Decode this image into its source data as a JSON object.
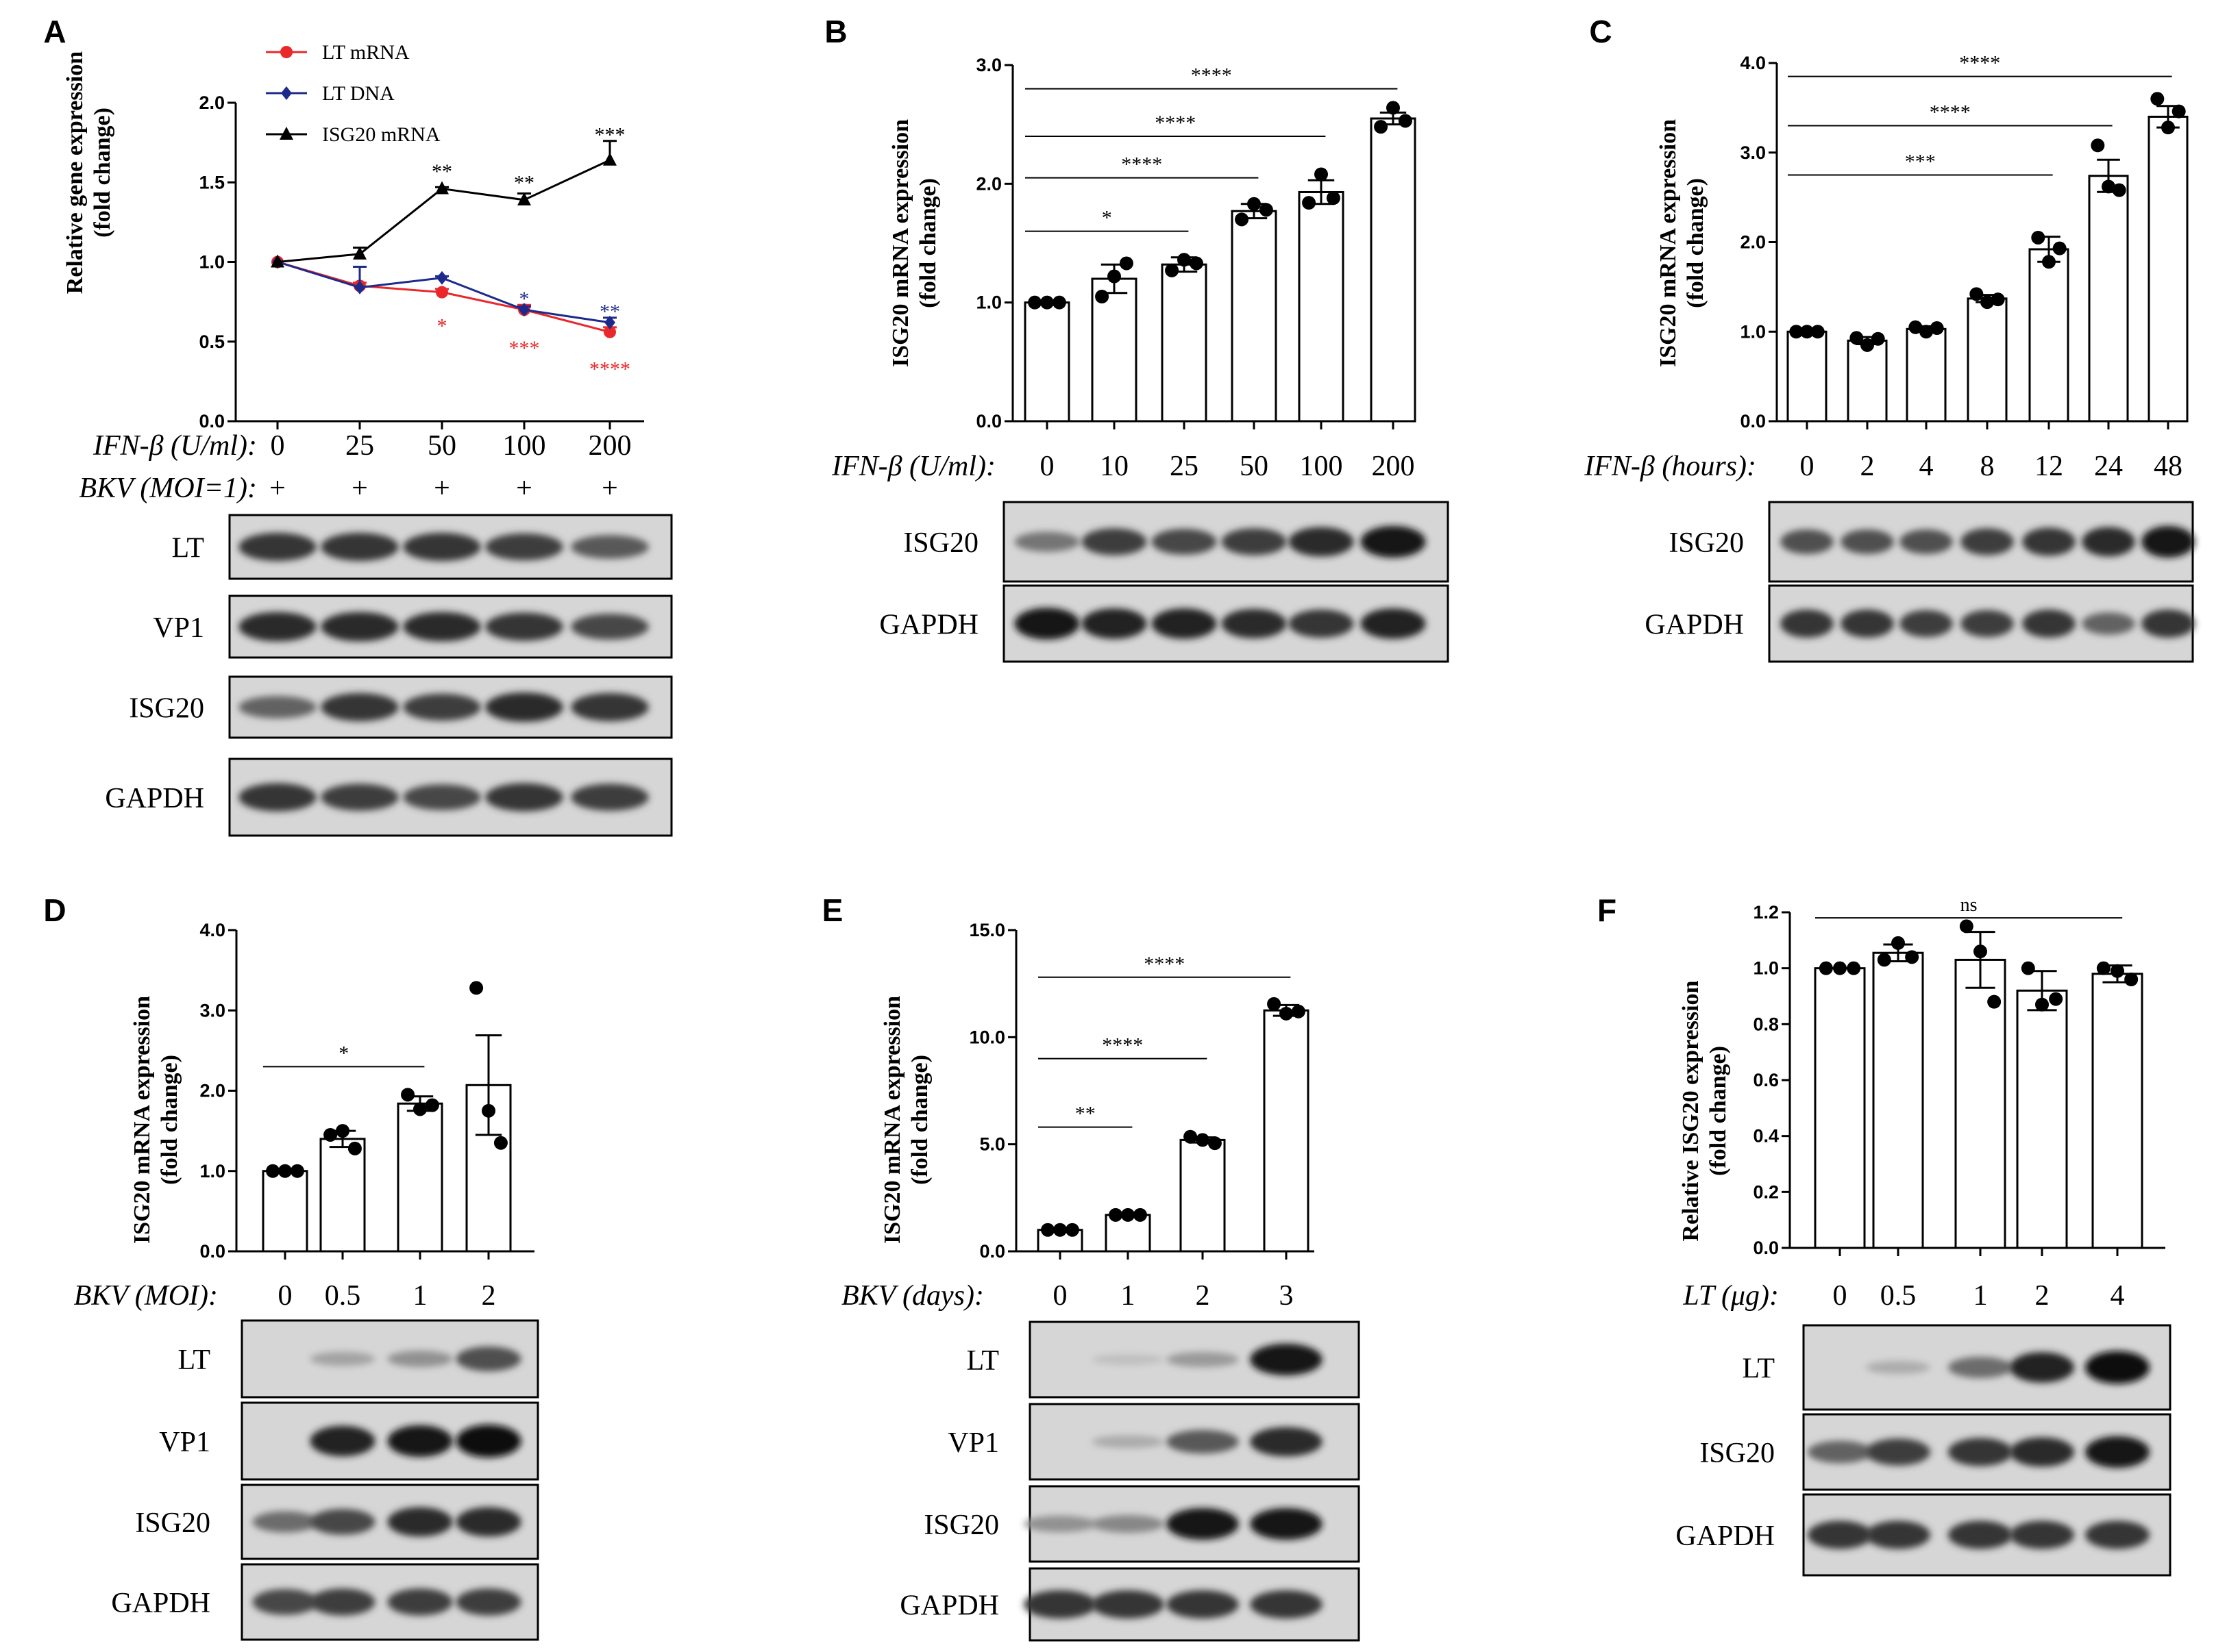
{
  "colors": {
    "lt_mrna": "#e8282b",
    "lt_dna": "#1c2a8c",
    "isg20": "#000000",
    "blot_dark": "#151515"
  },
  "chart_data": [
    {
      "panel": "A",
      "type": "line",
      "ylabel_line1": "Relative gene expression",
      "ylabel_line2": "(fold change)",
      "ylim": [
        0,
        2.0
      ],
      "yticks": [
        "0.0",
        "0.5",
        "1.0",
        "1.5",
        "2.0"
      ],
      "x": [
        0,
        25,
        50,
        100,
        200
      ],
      "series": [
        {
          "name": "LT mRNA",
          "color": "#e8282b",
          "marker": "circle",
          "values": [
            1.0,
            0.85,
            0.81,
            0.7,
            0.56
          ],
          "err": [
            0,
            0.02,
            0.02,
            0.03,
            0.03
          ]
        },
        {
          "name": "LT DNA",
          "color": "#1c2a8c",
          "marker": "diamond",
          "values": [
            1.0,
            0.84,
            0.9,
            0.7,
            0.62
          ],
          "err": [
            0,
            0.13,
            0.01,
            0.02,
            0.03
          ]
        },
        {
          "name": "ISG20 mRNA",
          "color": "#000000",
          "marker": "triangle",
          "values": [
            1.0,
            1.05,
            1.46,
            1.39,
            1.64
          ],
          "err": [
            0,
            0.04,
            0.01,
            0.04,
            0.12
          ]
        }
      ],
      "significance": [
        {
          "text": "**",
          "color": "#000000",
          "x_index": 2,
          "y": 1.57
        },
        {
          "text": "**",
          "color": "#000000",
          "x_index": 3,
          "y": 1.5
        },
        {
          "text": "***",
          "color": "#000000",
          "x_index": 4,
          "y": 1.8
        },
        {
          "text": "*",
          "color": "#1c2a8c",
          "x_index": 3,
          "y": 0.77
        },
        {
          "text": "**",
          "color": "#1c2a8c",
          "x_index": 4,
          "y": 0.69
        },
        {
          "text": "*",
          "color": "#e8282b",
          "x_index": 2,
          "y": 0.6
        },
        {
          "text": "***",
          "color": "#e8282b",
          "x_index": 3,
          "y": 0.46
        },
        {
          "text": "****",
          "color": "#e8282b",
          "x_index": 4,
          "y": 0.33
        }
      ],
      "conditions": [
        {
          "label": "IFN-β (U/ml):",
          "values": [
            "0",
            "25",
            "50",
            "100",
            "200"
          ]
        },
        {
          "label": "BKV (MOI=1):",
          "values": [
            "+",
            "+",
            "+",
            "+",
            "+"
          ]
        }
      ],
      "blots": [
        {
          "label": "LT",
          "bands": [
            0.8,
            0.8,
            0.8,
            0.75,
            0.6
          ]
        },
        {
          "label": "VP1",
          "bands": [
            0.85,
            0.85,
            0.85,
            0.8,
            0.7
          ]
        },
        {
          "label": "ISG20",
          "bands": [
            0.55,
            0.8,
            0.75,
            0.85,
            0.8
          ]
        },
        {
          "label": "GAPDH",
          "bands": [
            0.8,
            0.75,
            0.7,
            0.8,
            0.75
          ]
        }
      ]
    },
    {
      "panel": "B",
      "type": "bar",
      "ylabel_line1": "ISG20 mRNA expression",
      "ylabel_line2": "(fold change)",
      "ylim": [
        0,
        3.0
      ],
      "yticks": [
        "0.0",
        "1.0",
        "2.0",
        "3.0"
      ],
      "categories": [
        "0",
        "10",
        "25",
        "50",
        "100",
        "200"
      ],
      "values": [
        1.0,
        1.2,
        1.32,
        1.77,
        1.93,
        2.55
      ],
      "err": [
        0.0,
        0.12,
        0.06,
        0.06,
        0.1,
        0.05
      ],
      "points": [
        [
          1.0,
          1.0,
          1.0
        ],
        [
          1.05,
          1.22,
          1.33
        ],
        [
          1.27,
          1.36,
          1.33
        ],
        [
          1.7,
          1.83,
          1.78
        ],
        [
          1.84,
          2.08,
          1.88
        ],
        [
          2.48,
          2.64,
          2.53
        ]
      ],
      "brackets": [
        {
          "from": 0,
          "to": 2,
          "y": 1.6,
          "text": "*"
        },
        {
          "from": 0,
          "to": 3,
          "y": 2.05,
          "text": "****"
        },
        {
          "from": 0,
          "to": 4,
          "y": 2.4,
          "text": "****"
        },
        {
          "from": 0,
          "to": 5,
          "y": 2.8,
          "text": "****"
        }
      ],
      "conditions": [
        {
          "label": "IFN-β (U/ml):",
          "values": [
            "0",
            "10",
            "25",
            "50",
            "100",
            "200"
          ]
        }
      ],
      "blots": [
        {
          "label": "ISG20",
          "bands": [
            0.45,
            0.75,
            0.7,
            0.75,
            0.85,
            0.95
          ]
        },
        {
          "label": "GAPDH",
          "bands": [
            0.95,
            0.9,
            0.9,
            0.85,
            0.8,
            0.9
          ]
        }
      ]
    },
    {
      "panel": "C",
      "type": "bar",
      "ylabel_line1": "ISG20 mRNA expression",
      "ylabel_line2": "(fold change)",
      "ylim": [
        0,
        4.0
      ],
      "yticks": [
        "0.0",
        "1.0",
        "2.0",
        "3.0",
        "4.0"
      ],
      "categories": [
        "0",
        "2",
        "4",
        "8",
        "12",
        "24",
        "48"
      ],
      "values": [
        1.0,
        0.9,
        1.03,
        1.37,
        1.92,
        2.74,
        3.4
      ],
      "err": [
        0.0,
        0.04,
        0.03,
        0.04,
        0.14,
        0.18,
        0.12
      ],
      "points": [
        [
          1.0,
          1.0,
          1.0
        ],
        [
          0.93,
          0.85,
          0.92
        ],
        [
          1.05,
          1.0,
          1.04
        ],
        [
          1.42,
          1.33,
          1.36
        ],
        [
          2.05,
          1.78,
          1.93
        ],
        [
          3.08,
          2.62,
          2.58
        ],
        [
          3.6,
          3.28,
          3.46
        ]
      ],
      "brackets": [
        {
          "from": 0,
          "to": 4,
          "y": 2.75,
          "text": "***"
        },
        {
          "from": 0,
          "to": 5,
          "y": 3.3,
          "text": "****"
        },
        {
          "from": 0,
          "to": 6,
          "y": 3.85,
          "text": "****"
        }
      ],
      "conditions": [
        {
          "label": "IFN-β (hours):",
          "values": [
            "0",
            "2",
            "4",
            "8",
            "12",
            "24",
            "48"
          ]
        }
      ],
      "blots": [
        {
          "label": "ISG20",
          "bands": [
            0.65,
            0.65,
            0.65,
            0.75,
            0.8,
            0.85,
            0.95
          ]
        },
        {
          "label": "GAPDH",
          "bands": [
            0.8,
            0.8,
            0.75,
            0.75,
            0.8,
            0.55,
            0.8
          ]
        }
      ]
    },
    {
      "panel": "D",
      "type": "bar",
      "ylabel_line1": "ISG20 mRNA expression",
      "ylabel_line2": "(fold change)",
      "ylim": [
        0,
        4.0
      ],
      "yticks": [
        "0.0",
        "1.0",
        "2.0",
        "3.0",
        "4.0"
      ],
      "categories": [
        "0",
        "0.5",
        "1",
        "2"
      ],
      "values": [
        1.0,
        1.4,
        1.84,
        2.07
      ],
      "err": [
        0.0,
        0.1,
        0.09,
        0.62
      ],
      "points": [
        [
          1.0,
          1.0,
          1.0
        ],
        [
          1.45,
          1.5,
          1.28
        ],
        [
          1.95,
          1.77,
          1.82
        ],
        [
          3.28,
          1.75,
          1.35
        ]
      ],
      "brackets": [
        {
          "from": 0,
          "to": 2,
          "y": 2.3,
          "text": "*"
        }
      ],
      "conditions": [
        {
          "label": "BKV (MOI):",
          "values": [
            "0",
            "0.5",
            "1",
            "2"
          ]
        }
      ],
      "blots": [
        {
          "label": "LT",
          "bands": [
            0.0,
            0.2,
            0.3,
            0.65
          ]
        },
        {
          "label": "VP1",
          "bands": [
            0.0,
            0.9,
            0.95,
            1.0
          ]
        },
        {
          "label": "ISG20",
          "bands": [
            0.5,
            0.7,
            0.85,
            0.85
          ]
        },
        {
          "label": "GAPDH",
          "bands": [
            0.7,
            0.75,
            0.75,
            0.75
          ]
        }
      ]
    },
    {
      "panel": "E",
      "type": "bar",
      "ylabel_line1": "ISG20 mRNA expression",
      "ylabel_line2": "(fold change)",
      "ylim": [
        0,
        15.0
      ],
      "yticks": [
        "0.0",
        "5.0",
        "10.0",
        "15.0"
      ],
      "categories": [
        "0",
        "1",
        "2",
        "3"
      ],
      "values": [
        1.0,
        1.7,
        5.2,
        11.25
      ],
      "err": [
        0.0,
        0.05,
        0.12,
        0.25
      ],
      "points": [
        [
          1.0,
          1.0,
          1.0
        ],
        [
          1.7,
          1.7,
          1.7
        ],
        [
          5.35,
          5.2,
          5.05
        ],
        [
          11.55,
          11.1,
          11.2
        ]
      ],
      "brackets": [
        {
          "from": 0,
          "to": 1,
          "y": 5.8,
          "text": "**"
        },
        {
          "from": 0,
          "to": 2,
          "y": 9.0,
          "text": "****"
        },
        {
          "from": 0,
          "to": 3,
          "y": 12.8,
          "text": "****"
        }
      ],
      "conditions": [
        {
          "label": "BKV (days):",
          "values": [
            "0",
            "1",
            "2",
            "3"
          ]
        }
      ],
      "blots": [
        {
          "label": "LT",
          "bands": [
            0.0,
            0.05,
            0.25,
            0.95
          ]
        },
        {
          "label": "VP1",
          "bands": [
            0.0,
            0.15,
            0.6,
            0.85
          ]
        },
        {
          "label": "ISG20",
          "bands": [
            0.3,
            0.35,
            0.95,
            0.95
          ]
        },
        {
          "label": "GAPDH",
          "bands": [
            0.8,
            0.8,
            0.8,
            0.8
          ]
        }
      ]
    },
    {
      "panel": "F",
      "type": "bar",
      "ylabel_line1": "Relative ISG20 expression",
      "ylabel_line2": "(fold change)",
      "ylim": [
        0,
        1.2
      ],
      "yticks": [
        "0.0",
        "0.2",
        "0.4",
        "0.6",
        "0.8",
        "1.0",
        "1.2"
      ],
      "categories": [
        "0",
        "0.5",
        "1",
        "2",
        "4"
      ],
      "values": [
        1.0,
        1.055,
        1.03,
        0.92,
        0.98
      ],
      "err": [
        0.0,
        0.03,
        0.1,
        0.07,
        0.03
      ],
      "points": [
        [
          1.0,
          1.0,
          1.0
        ],
        [
          1.03,
          1.09,
          1.04
        ],
        [
          1.15,
          1.06,
          0.88
        ],
        [
          1.0,
          0.87,
          0.89
        ],
        [
          1.0,
          0.99,
          0.96
        ]
      ],
      "brackets": [
        {
          "from": 0,
          "to": 4,
          "y": 1.18,
          "text": "ns"
        }
      ],
      "conditions": [
        {
          "label": "LT (μg):",
          "values": [
            "0",
            "0.5",
            "1",
            "2",
            "4"
          ]
        }
      ],
      "blots": [
        {
          "label": "LT",
          "bands": [
            0.0,
            0.15,
            0.5,
            0.9,
            1.0
          ]
        },
        {
          "label": "ISG20",
          "bands": [
            0.55,
            0.75,
            0.8,
            0.85,
            0.95
          ]
        },
        {
          "label": "GAPDH",
          "bands": [
            0.8,
            0.8,
            0.8,
            0.8,
            0.8
          ]
        }
      ]
    }
  ]
}
